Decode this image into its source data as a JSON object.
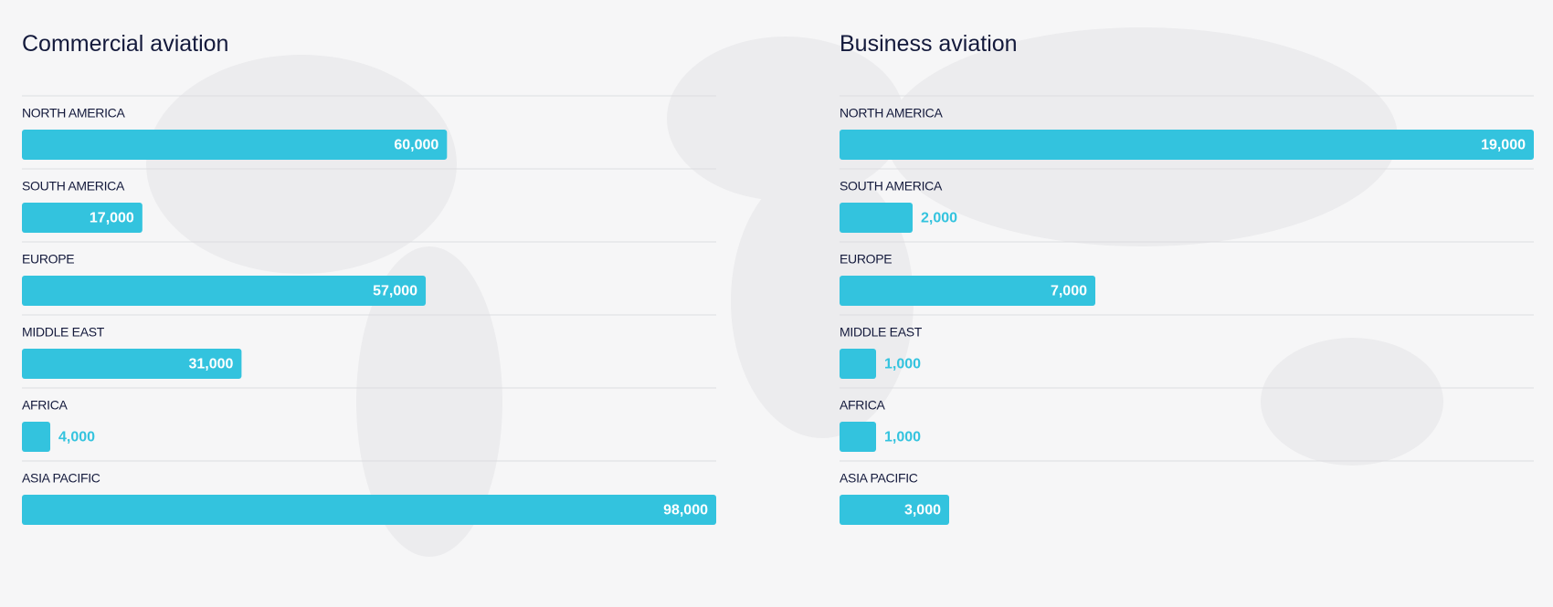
{
  "chart_data": [
    {
      "type": "bar",
      "orientation": "horizontal",
      "title": "Commercial aviation",
      "categories": [
        "NORTH AMERICA",
        "SOUTH AMERICA",
        "EUROPE",
        "MIDDLE EAST",
        "AFRICA",
        "ASIA PACIFIC"
      ],
      "values": [
        60000,
        17000,
        57000,
        31000,
        4000,
        98000
      ],
      "value_labels": [
        "60,000",
        "17,000",
        "57,000",
        "31,000",
        "4,000",
        "98,000"
      ],
      "color": "#33c3de"
    },
    {
      "type": "bar",
      "orientation": "horizontal",
      "title": "Business aviation",
      "categories": [
        "NORTH AMERICA",
        "SOUTH AMERICA",
        "EUROPE",
        "MIDDLE EAST",
        "AFRICA",
        "ASIA PACIFIC"
      ],
      "values": [
        19000,
        2000,
        7000,
        1000,
        1000,
        3000
      ],
      "value_labels": [
        "19,000",
        "2,000",
        "7,000",
        "1,000",
        "1,000",
        "3,000"
      ],
      "color": "#33c3de"
    }
  ]
}
